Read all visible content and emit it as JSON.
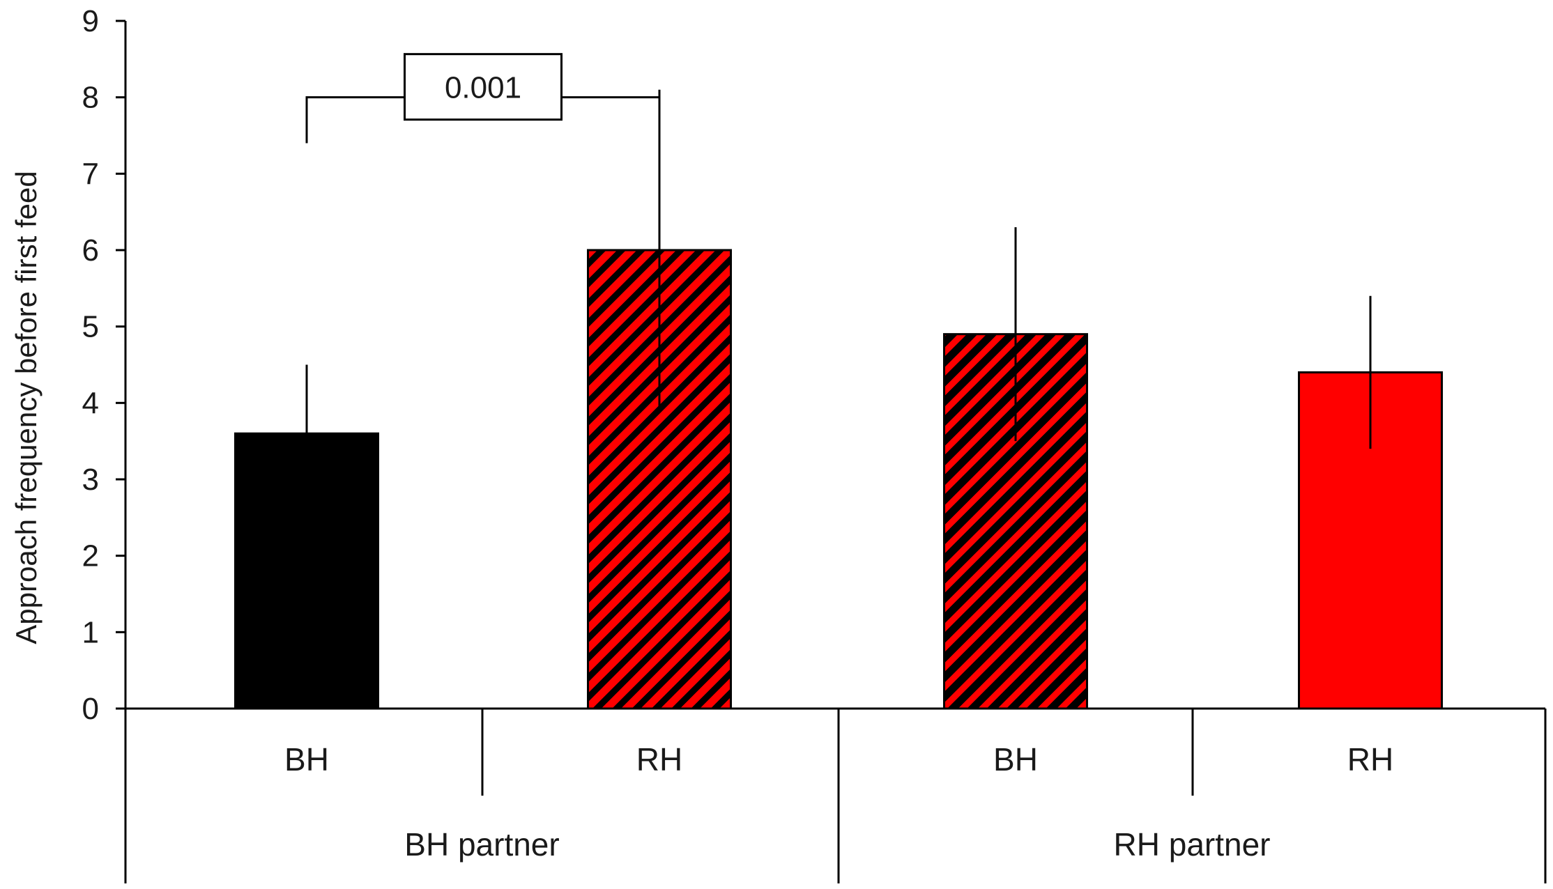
{
  "chart_data": {
    "type": "bar",
    "title": "",
    "xlabel": "",
    "ylabel": "Approach frequency before first feed",
    "ylim": [
      0,
      9
    ],
    "yticks": [
      0,
      1,
      2,
      3,
      4,
      5,
      6,
      7,
      8,
      9
    ],
    "grid": false,
    "legend": "none",
    "groups": [
      {
        "label": "BH partner",
        "bars": [
          {
            "category": "BH",
            "value": 3.6,
            "error": 0.9,
            "fill": "#000000",
            "hatched": false
          },
          {
            "category": "RH",
            "value": 6.0,
            "error": 2.1,
            "fill": "#ff0000",
            "hatched": true
          }
        ]
      },
      {
        "label": "RH partner",
        "bars": [
          {
            "category": "BH",
            "value": 4.9,
            "error": 1.4,
            "fill": "#ff0000",
            "hatched": true,
            "hatch_dense": true
          },
          {
            "category": "RH",
            "value": 4.4,
            "error": 1.0,
            "fill": "#ff0000",
            "hatched": false
          }
        ]
      }
    ],
    "annotations": [
      {
        "text": "0.001",
        "from_bar": 0,
        "to_bar": 1,
        "bracket_y": 7.4,
        "top_y": 8.0
      }
    ],
    "colors": {
      "black": "#000000",
      "red": "#ff0000",
      "axis": "#000000"
    }
  }
}
